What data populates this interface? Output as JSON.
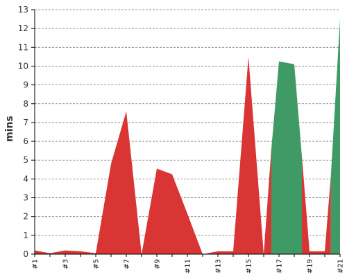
{
  "chart_data": {
    "type": "area",
    "ylabel": "mins",
    "xlabel": "",
    "title": "",
    "ylim": [
      0,
      13
    ],
    "yticks": [
      0,
      1,
      2,
      3,
      4,
      5,
      6,
      7,
      8,
      9,
      10,
      11,
      12,
      13
    ],
    "grid": true,
    "x_tick_labels": [
      "#1",
      "#3",
      "#5",
      "#7",
      "#9",
      "#11",
      "#13",
      "#15",
      "#17",
      "#19",
      "#21"
    ],
    "x_tick_values": [
      1,
      3,
      5,
      7,
      9,
      11,
      13,
      15,
      17,
      19,
      21
    ],
    "colors": {
      "failed": "#d93535",
      "success": "#3f9a66"
    },
    "series": [
      {
        "color_key": "failed",
        "points": [
          [
            1,
            0.2
          ],
          [
            2,
            0.05
          ],
          [
            3,
            0.2
          ],
          [
            4,
            0.15
          ],
          [
            5,
            0.05
          ],
          [
            6,
            4.8
          ],
          [
            7,
            7.6
          ],
          [
            8,
            0
          ],
          [
            9,
            4.55
          ],
          [
            10,
            4.25
          ],
          [
            11,
            2.15
          ],
          [
            12,
            0
          ],
          [
            13,
            0.15
          ],
          [
            14,
            0.15
          ],
          [
            15,
            10.5
          ],
          [
            16,
            0
          ],
          [
            16.5,
            5.6
          ],
          [
            16.5,
            0
          ]
        ]
      },
      {
        "color_key": "success",
        "points": [
          [
            16.5,
            0
          ],
          [
            16.5,
            5.6
          ],
          [
            17,
            10.25
          ],
          [
            18,
            10.1
          ],
          [
            18.5,
            5.2
          ],
          [
            18.5,
            0
          ]
        ]
      },
      {
        "color_key": "failed",
        "points": [
          [
            18.5,
            0
          ],
          [
            18.5,
            5.2
          ],
          [
            19,
            0.15
          ],
          [
            20,
            0.15
          ],
          [
            20.4,
            4.2
          ],
          [
            20.4,
            0
          ]
        ]
      },
      {
        "color_key": "success",
        "points": [
          [
            20.4,
            0
          ],
          [
            20.4,
            4.2
          ],
          [
            21,
            12.5
          ],
          [
            21,
            0
          ]
        ]
      }
    ]
  }
}
